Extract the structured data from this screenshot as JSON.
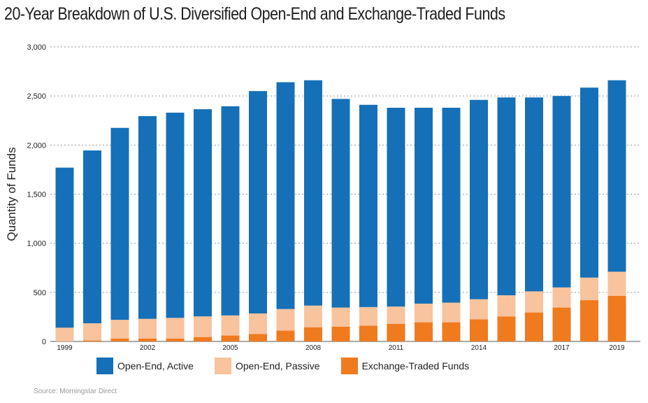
{
  "title": "20-Year Breakdown of U.S. Diversified Open-End and Exchange-Traded Funds",
  "source": "Source: Morningstar Direct",
  "colors": {
    "active": "#1570b8",
    "passive": "#f9c39d",
    "etf": "#f07a1e",
    "grid": "#9a9a9a"
  },
  "chart_data": {
    "type": "bar",
    "stacked": true,
    "ylabel": "Quantity of Funds",
    "xlabel": "",
    "ylim": [
      0,
      3000
    ],
    "yticks": [
      0,
      500,
      1000,
      1500,
      2000,
      2500,
      3000
    ],
    "ytick_labels": [
      "0",
      "500",
      "1,000",
      "1,500",
      "2,000",
      "2,500",
      "3,000"
    ],
    "categories": [
      "1999",
      "2000",
      "2001",
      "2002",
      "2003",
      "2004",
      "2005",
      "2006",
      "2007",
      "2008",
      "2009",
      "2010",
      "2011",
      "2012",
      "2013",
      "2014",
      "2015",
      "2016",
      "2017",
      "2018",
      "2019"
    ],
    "xtick_labels": [
      "1999",
      "",
      "",
      "2002",
      "",
      "",
      "2005",
      "",
      "",
      "2008",
      "",
      "",
      "2011",
      "",
      "",
      "2014",
      "",
      "",
      "2017",
      "",
      "2019"
    ],
    "grid": "horizontal-dotted",
    "legend_position": "bottom",
    "series": [
      {
        "name": "Exchange-Traded Funds",
        "color": "#f07a1e",
        "values": [
          0,
          10,
          30,
          30,
          30,
          45,
          60,
          75,
          110,
          145,
          150,
          160,
          180,
          195,
          195,
          225,
          255,
          295,
          345,
          420,
          465
        ]
      },
      {
        "name": "Open-End, Passive",
        "color": "#f9c39d",
        "values": [
          140,
          175,
          190,
          200,
          210,
          210,
          205,
          210,
          220,
          220,
          195,
          190,
          175,
          190,
          200,
          205,
          215,
          215,
          205,
          230,
          245
        ]
      },
      {
        "name": "Open-End, Active",
        "color": "#1570b8",
        "values": [
          1630,
          1760,
          1955,
          2065,
          2090,
          2110,
          2130,
          2265,
          2310,
          2295,
          2125,
          2060,
          2025,
          1995,
          1985,
          2030,
          2015,
          1975,
          1950,
          1935,
          1950
        ]
      }
    ]
  },
  "legend": {
    "items": [
      {
        "label": "Open-End, Active",
        "color": "#1570b8"
      },
      {
        "label": "Open-End, Passive",
        "color": "#f9c39d"
      },
      {
        "label": "Exchange-Traded Funds",
        "color": "#f07a1e"
      }
    ]
  }
}
